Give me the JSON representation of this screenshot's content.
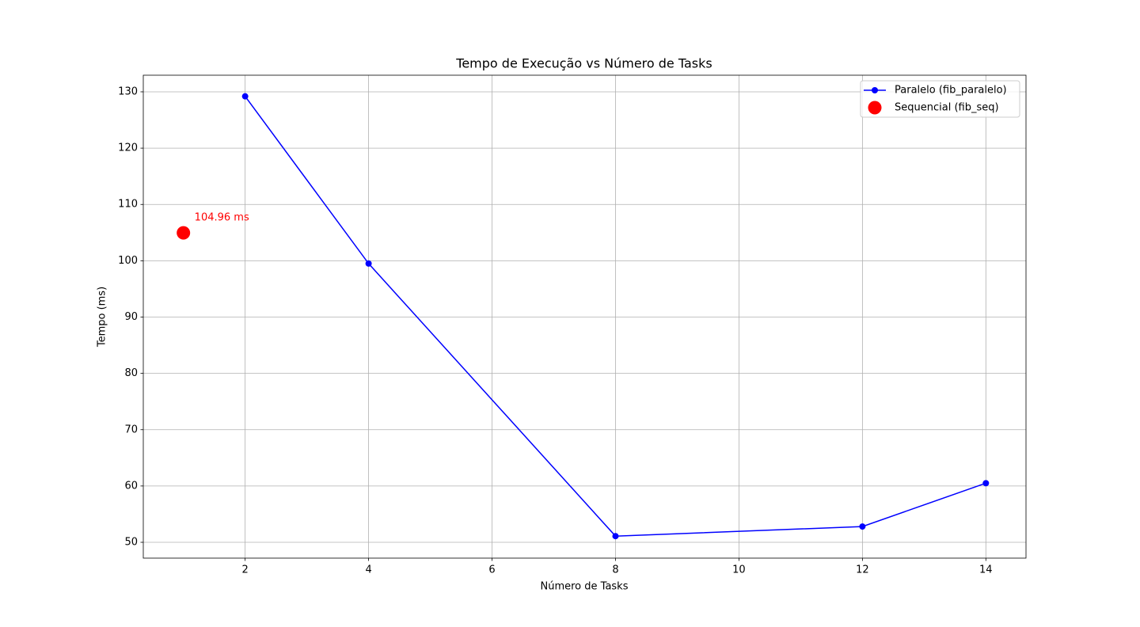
{
  "chart_data": {
    "type": "line",
    "title": "Tempo de Execução vs Número de Tasks",
    "x_label": "Número de Tasks",
    "y_label": "Tempo (ms)",
    "series": [
      {
        "name": "Paralelo (fib_paralelo)",
        "color": "#0000ff",
        "kind": "line",
        "x": [
          2,
          4,
          8,
          12,
          14
        ],
        "values": [
          129.2,
          99.5,
          51.1,
          52.8,
          60.5
        ]
      },
      {
        "name": "Sequencial (fib_seq)",
        "color": "#ff0000",
        "kind": "scatter",
        "x": [
          1
        ],
        "values": [
          104.96
        ],
        "value_labels": [
          "104.96 ms"
        ]
      }
    ],
    "xlim": [
      0.35,
      14.65
    ],
    "xticks": [
      2,
      4,
      6,
      8,
      10,
      12,
      14
    ],
    "ylim": [
      47.19,
      132.95
    ],
    "yticks": [
      50,
      60,
      70,
      80,
      90,
      100,
      110,
      120,
      130
    ],
    "grid": true,
    "legend": "upper right"
  }
}
